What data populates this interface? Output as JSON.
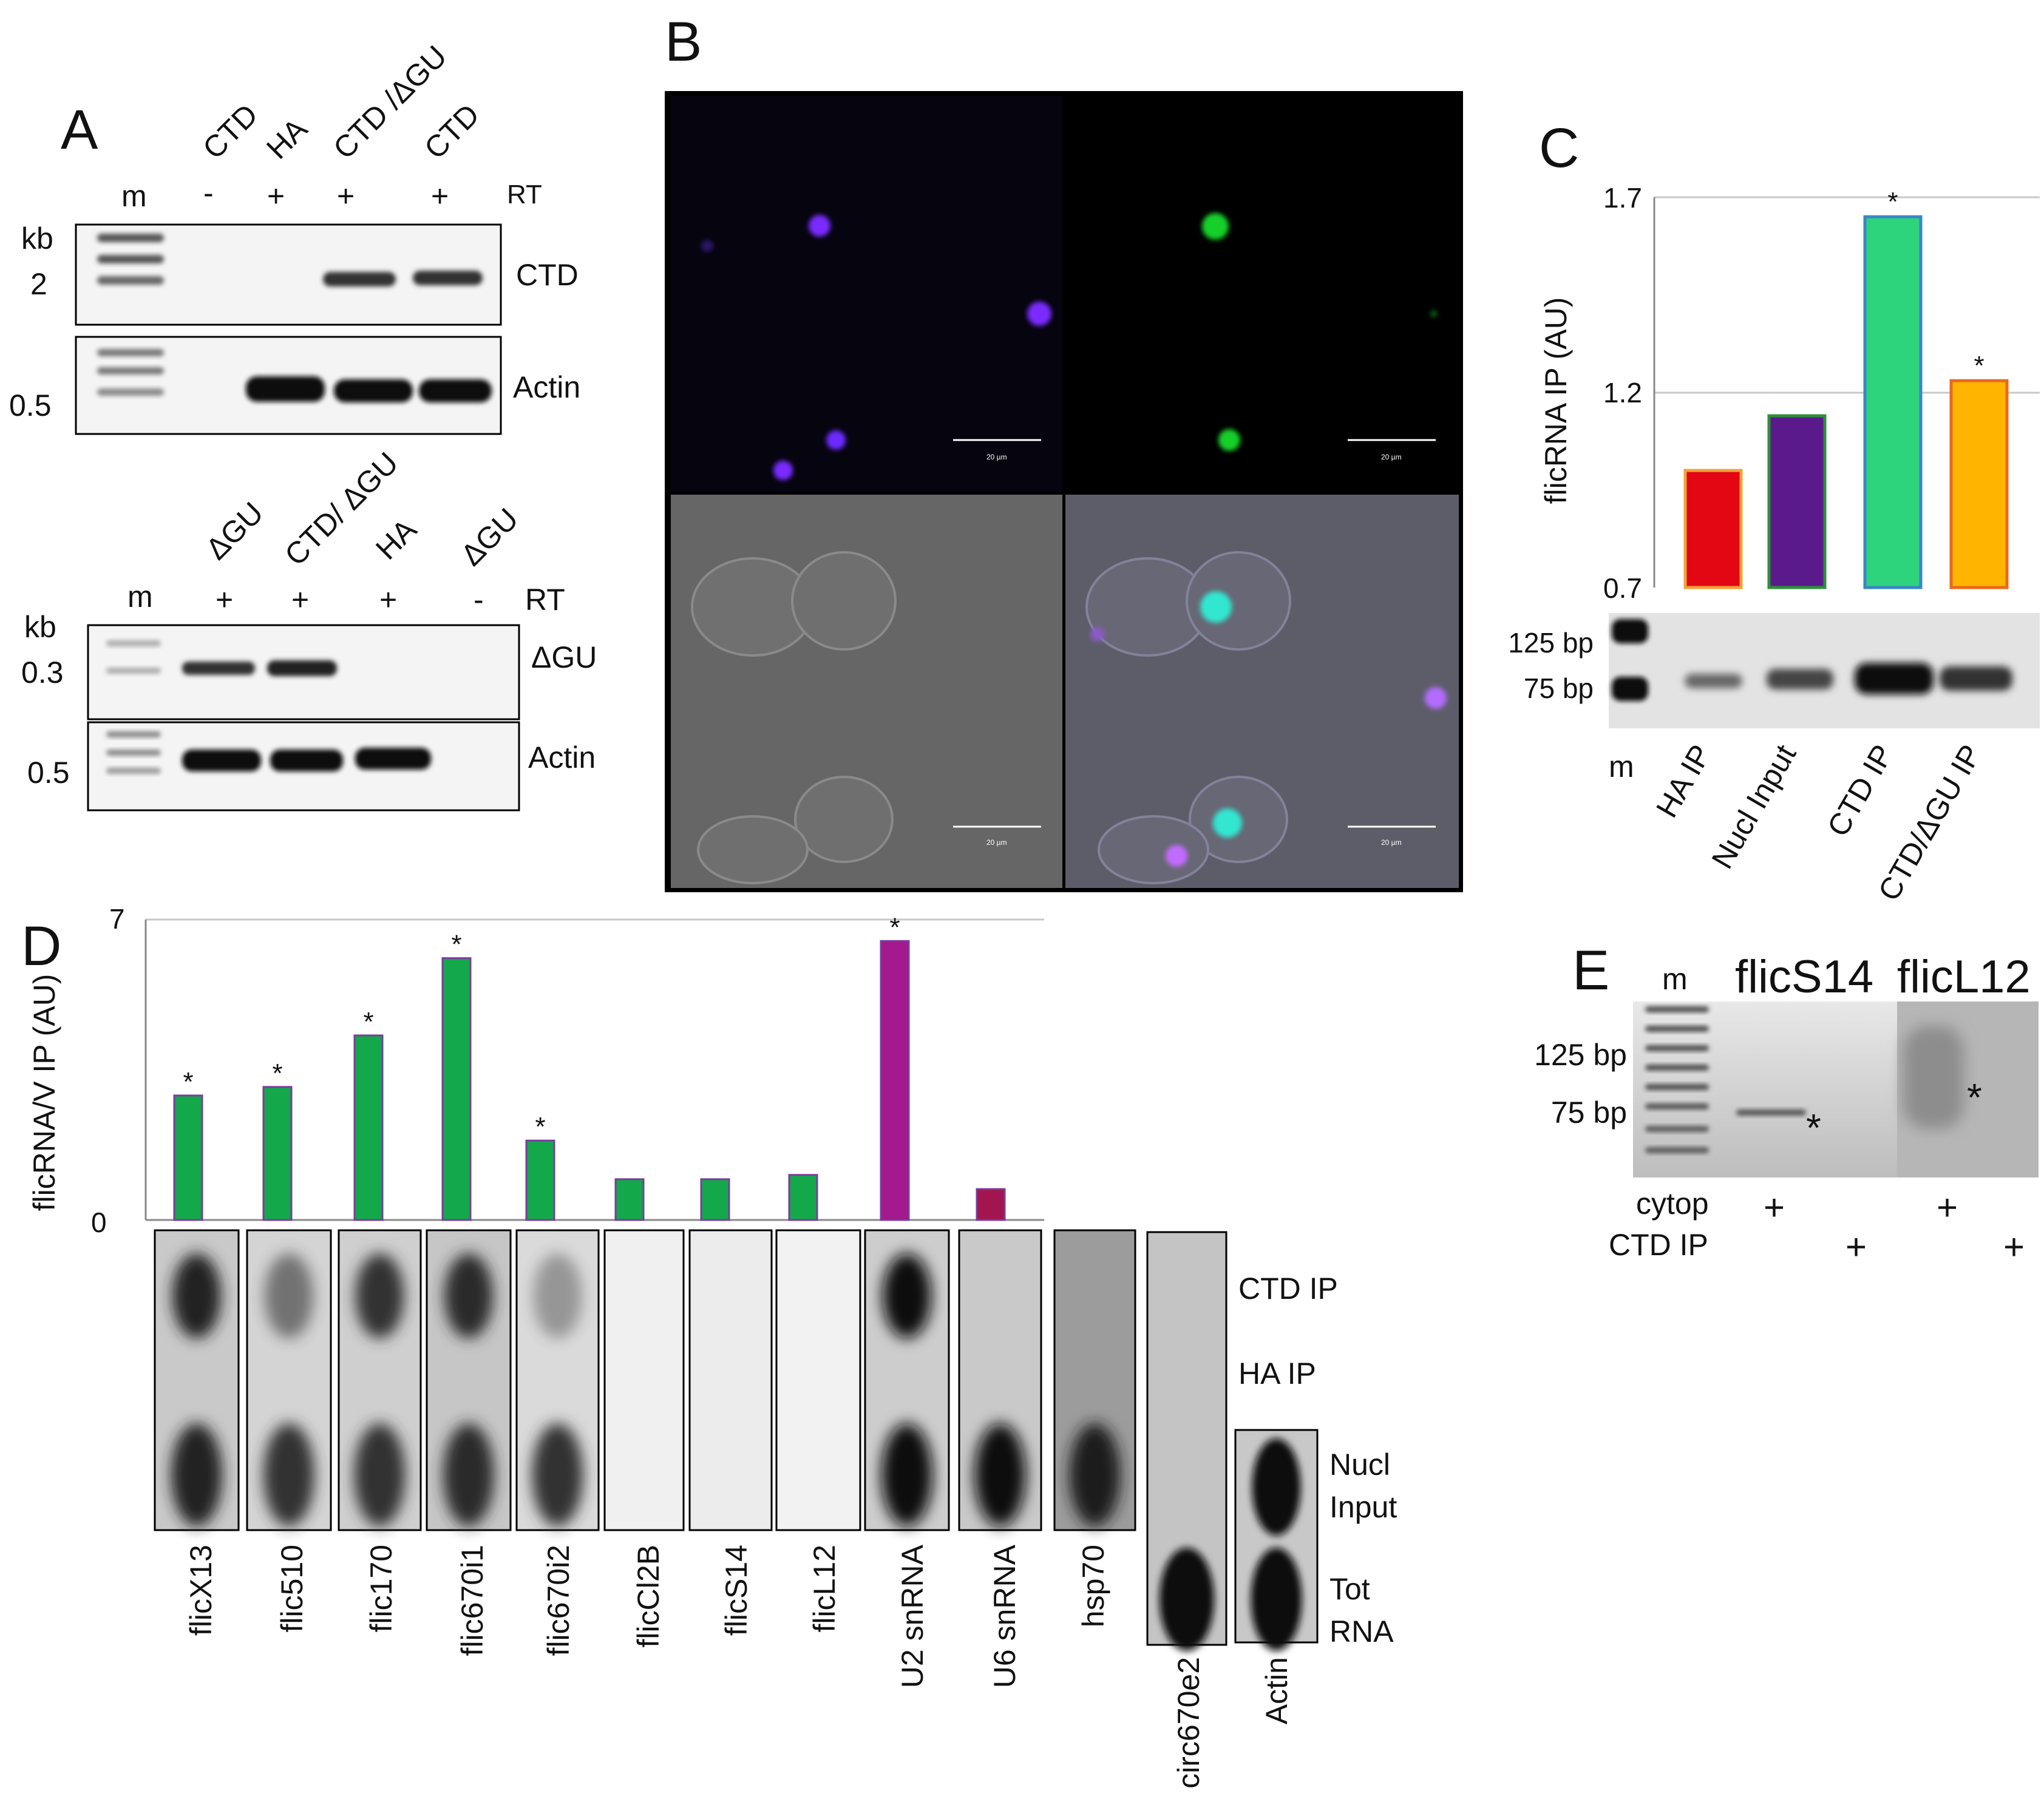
{
  "panels": {
    "A": {
      "letter": "A",
      "top": {
        "lane_headers": [
          "m",
          "CTD",
          "HA",
          "CTD /ΔGU",
          "CTD"
        ],
        "rt_signs": [
          "-",
          "+",
          "+",
          "+"
        ],
        "rt_label": "RT",
        "size_unit": "kb",
        "size_gene": "2",
        "size_actin": "0.5",
        "gene_label": "CTD",
        "actin_label": "Actin"
      },
      "bottom": {
        "lane_headers": [
          "m",
          "ΔGU",
          "CTD/ ΔGU",
          "HA",
          "ΔGU"
        ],
        "rt_signs": [
          "+",
          "+",
          "+",
          "-"
        ],
        "rt_label": "RT",
        "size_unit": "kb",
        "size_gene": "0.3",
        "size_actin": "0.5",
        "gene_label": "ΔGU",
        "actin_label": "Actin"
      }
    },
    "B": {
      "letter": "B",
      "scale_bar_label": "20 µm"
    },
    "C": {
      "letter": "C",
      "chart_data": {
        "type": "bar",
        "ylabel": "flicRNA IP (AU)",
        "ylim": [
          0.7,
          1.7
        ],
        "yticks": [
          "1.7",
          "1.2",
          "0.7"
        ],
        "categories": [
          "HA IP",
          "Nucl Input",
          "CTD IP",
          "CTD/ΔGU IP"
        ],
        "values": [
          1.0,
          1.14,
          1.65,
          1.23
        ],
        "significant": [
          "",
          "",
          "*",
          "*"
        ],
        "colors": [
          "#e30613",
          "#5b1a8c",
          "#2ed47c",
          "#ffb400"
        ],
        "edge_colors": [
          "#f2a23a",
          "#2f8f3a",
          "#3a86c8",
          "#e86a1c"
        ]
      },
      "gel": {
        "marker_label": "m",
        "size_125": "125 bp",
        "size_75": "75 bp"
      }
    },
    "D": {
      "letter": "D",
      "chart_data": {
        "type": "bar",
        "ylabel": "flicRNA/V IP (AU)",
        "ylim": [
          0,
          7
        ],
        "yticks": [
          "7",
          "0"
        ],
        "categories": [
          "flicX13",
          "flic510",
          "flic170",
          "flic670i1",
          "flic670i2",
          "flicCl2B",
          "flicS14",
          "flicL12",
          "U2 snRNA",
          "U6 snRNA"
        ],
        "values": [
          2.9,
          3.1,
          4.3,
          6.1,
          1.85,
          0.95,
          0.95,
          1.05,
          6.5,
          0.72
        ],
        "significant": [
          "*",
          "*",
          "*",
          "*",
          "*",
          "",
          "",
          "",
          "*",
          ""
        ],
        "colors": [
          "#13a84a",
          "#13a84a",
          "#13a84a",
          "#13a84a",
          "#13a84a",
          "#13a84a",
          "#13a84a",
          "#13a84a",
          "#a3198e",
          "#a3154e"
        ]
      },
      "blot_lanes": [
        "flicX13",
        "flic510",
        "flic170",
        "flic670i1",
        "flic670i2",
        "flicCl2B",
        "flicS14",
        "flicL12",
        "U2 snRNA",
        "U6 snRNA",
        "hsp70",
        "circ670e2",
        "Actin"
      ],
      "row_labels": {
        "ctd_ip": "CTD IP",
        "ha_ip": "HA IP",
        "nucl_input_1": "Nucl",
        "nucl_input_2": "Input",
        "tot_rna_1": "Tot",
        "tot_rna_2": "RNA"
      }
    },
    "E": {
      "letter": "E",
      "marker_label": "m",
      "lane_groups": [
        "flicS14",
        "flicL12"
      ],
      "size_125": "125 bp",
      "size_75": "75 bp",
      "row_cytop": "cytop",
      "row_ctd_ip": "CTD IP",
      "plus": "+",
      "asterisk": "*"
    }
  }
}
